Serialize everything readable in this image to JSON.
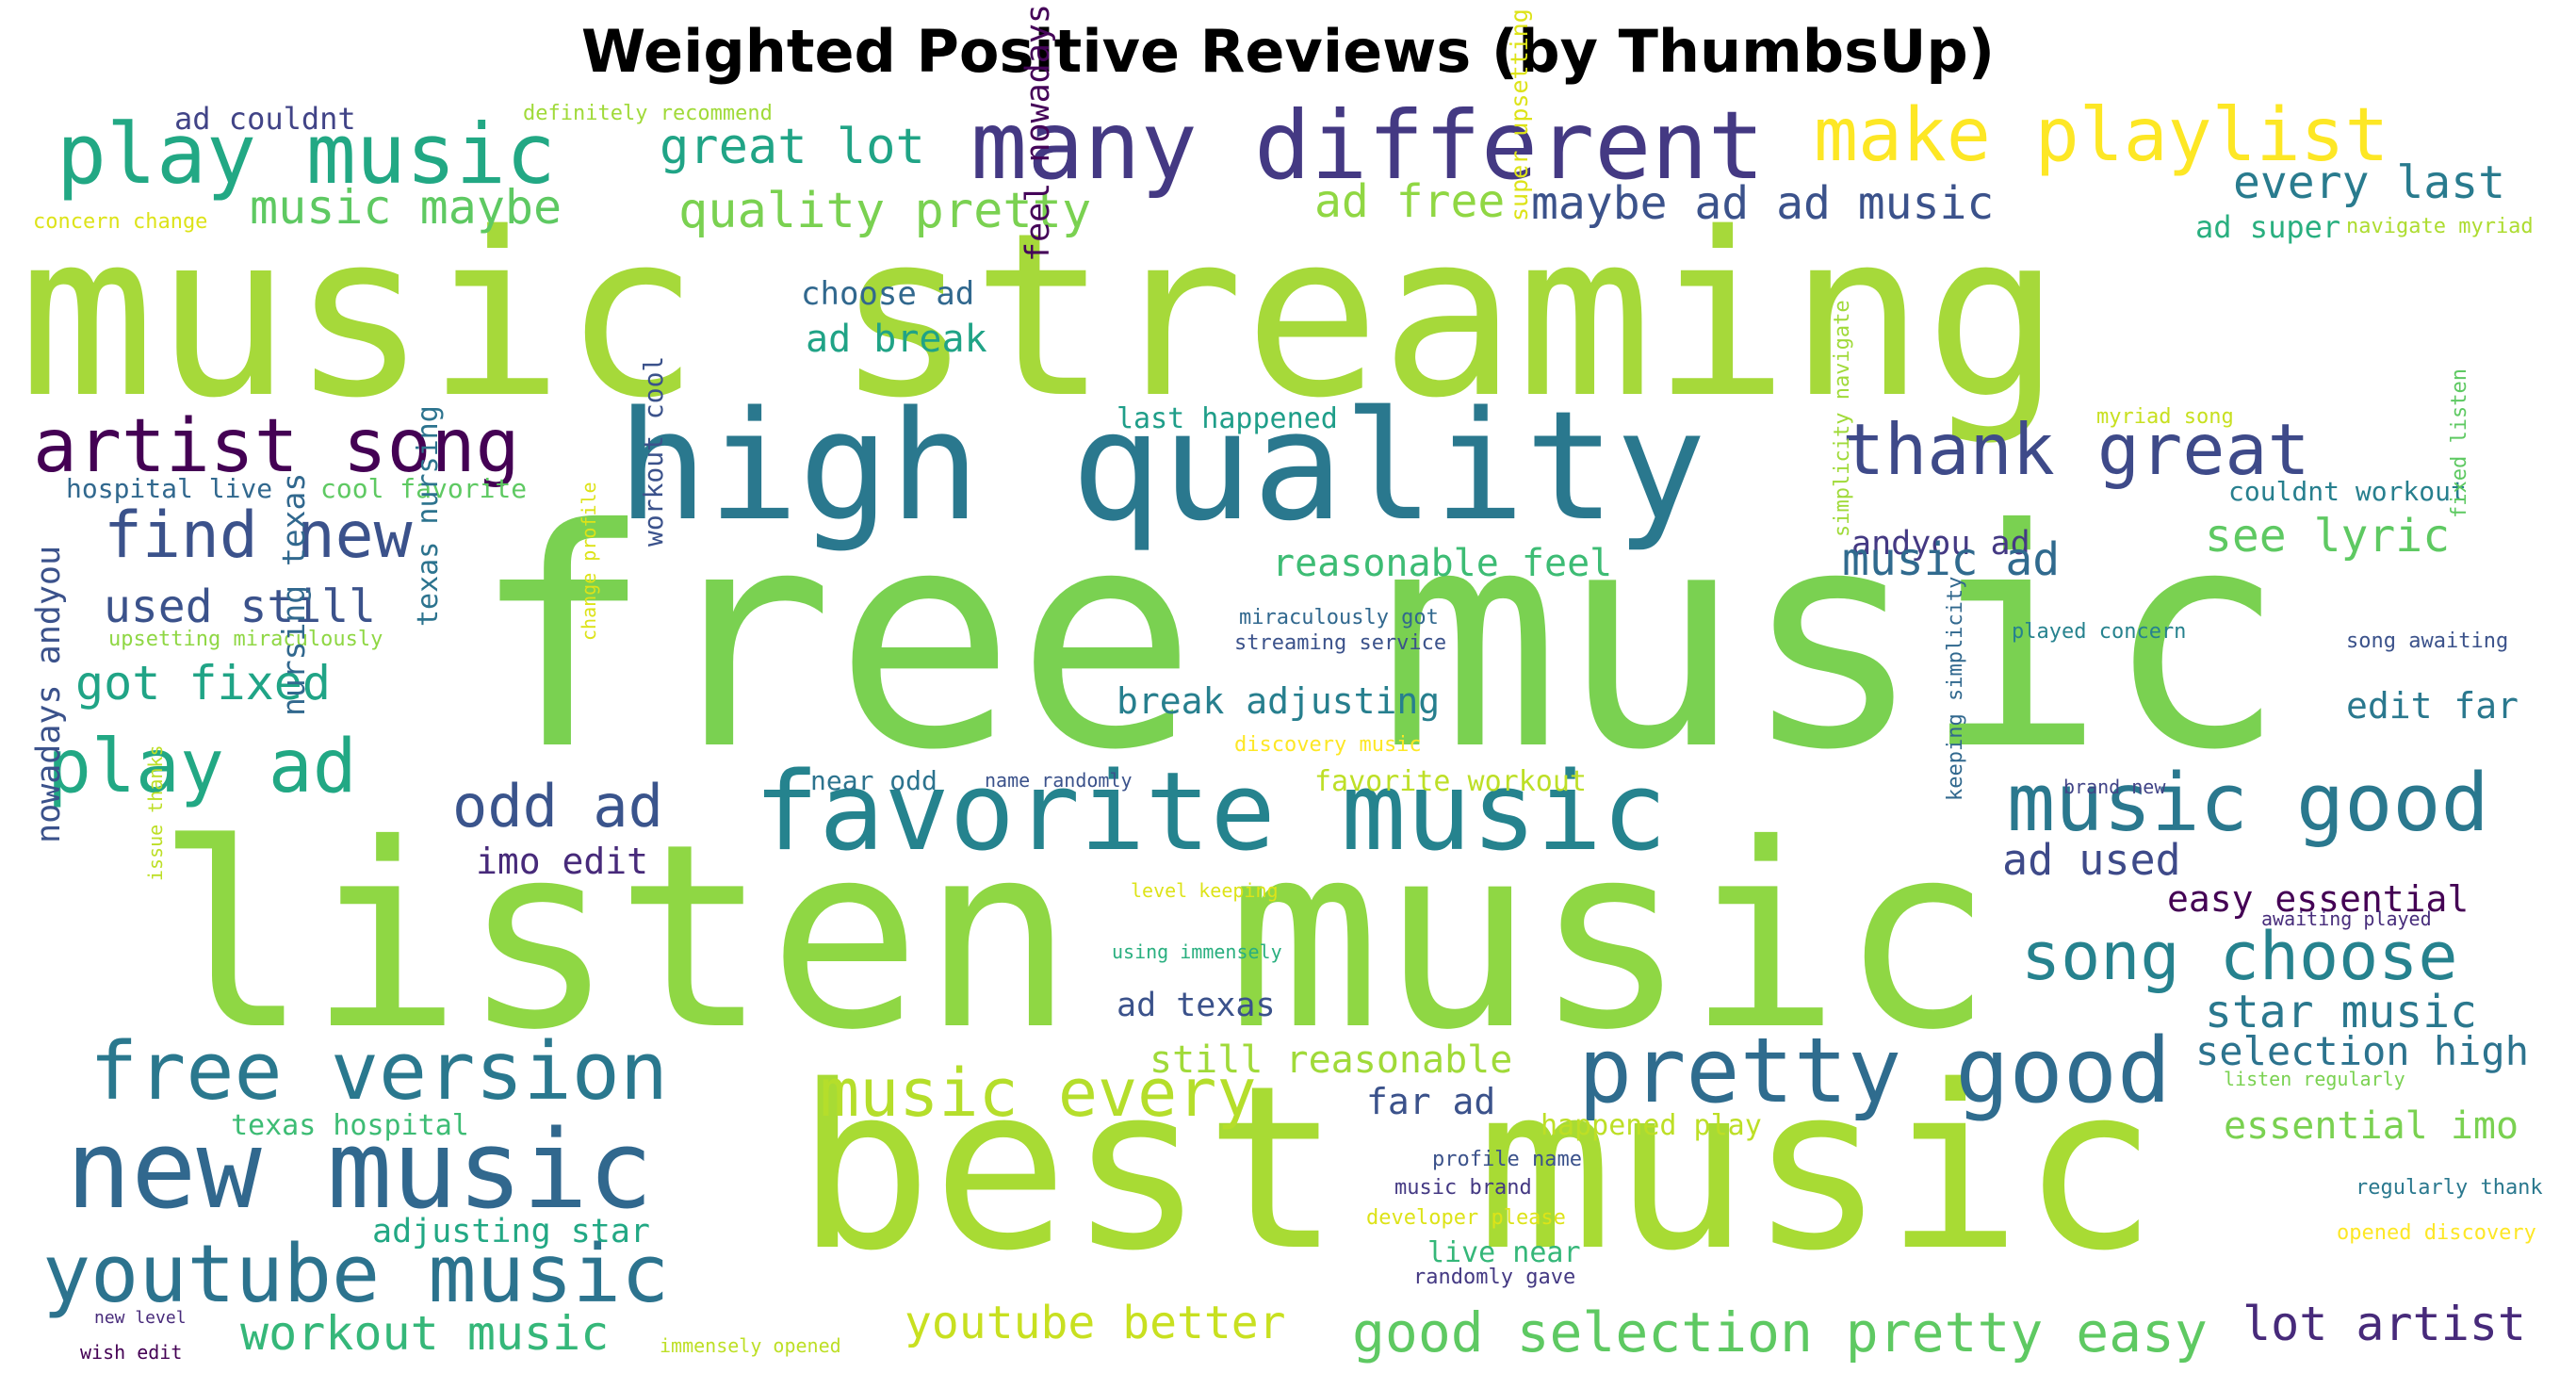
{
  "title": "Weighted Positive Reviews (by ThumbsUp)",
  "words": [
    {
      "text": "music streaming",
      "color": "#a6d93a"
    },
    {
      "text": "free music",
      "color": "#7ad151"
    },
    {
      "text": "listen music",
      "color": "#8fd744"
    },
    {
      "text": "best music",
      "color": "#a8db34"
    },
    {
      "text": "high quality",
      "color": "#2a788e"
    },
    {
      "text": "favorite music",
      "color": "#25838e"
    },
    {
      "text": "many different",
      "color": "#443983"
    },
    {
      "text": "play music",
      "color": "#22a884"
    },
    {
      "text": "make playlist",
      "color": "#fde725"
    },
    {
      "text": "new music",
      "color": "#31688e"
    },
    {
      "text": "youtube music",
      "color": "#2c738e"
    },
    {
      "text": "free version",
      "color": "#2a788e"
    },
    {
      "text": "pretty good",
      "color": "#2f6c8e"
    },
    {
      "text": "music good",
      "color": "#2a788e"
    },
    {
      "text": "artist song",
      "color": "#440154"
    },
    {
      "text": "thank great",
      "color": "#3e4a89"
    },
    {
      "text": "song choose",
      "color": "#26828e"
    },
    {
      "text": "music every",
      "color": "#b5de2b"
    },
    {
      "text": "find new",
      "color": "#3b528b"
    },
    {
      "text": "play ad",
      "color": "#22a884"
    },
    {
      "text": "odd ad",
      "color": "#3a548c"
    },
    {
      "text": "great lot",
      "color": "#20a486"
    },
    {
      "text": "music maybe",
      "color": "#5ec962"
    },
    {
      "text": "quality pretty",
      "color": "#7ad151"
    },
    {
      "text": "ad free",
      "color": "#90d743"
    },
    {
      "text": "maybe ad ad music",
      "color": "#3b528b"
    },
    {
      "text": "every last",
      "color": "#297b8e"
    },
    {
      "text": "ad super",
      "color": "#29af7f"
    },
    {
      "text": "navigate myriad",
      "color": "#addc30"
    },
    {
      "text": "ad couldnt",
      "color": "#414487"
    },
    {
      "text": "definitely recommend",
      "color": "#a0da39"
    },
    {
      "text": "concern change",
      "color": "#dde318"
    },
    {
      "text": "choose ad",
      "color": "#31688e"
    },
    {
      "text": "ad break",
      "color": "#20a386"
    },
    {
      "text": "feel nowadays",
      "color": "#450559"
    },
    {
      "text": "super upsetting",
      "color": "#dde318"
    },
    {
      "text": "last happened",
      "color": "#1f9e89"
    },
    {
      "text": "myriad song",
      "color": "#c8e020"
    },
    {
      "text": "hospital live",
      "color": "#31688e"
    },
    {
      "text": "cool favorite",
      "color": "#5ec962"
    },
    {
      "text": "andyou ad",
      "color": "#443983"
    },
    {
      "text": "couldnt workout",
      "color": "#277f8e"
    },
    {
      "text": "see lyric",
      "color": "#5ec962"
    },
    {
      "text": "music ad",
      "color": "#306a8e"
    },
    {
      "text": "reasonable feel",
      "color": "#3dbc74"
    },
    {
      "text": "used still",
      "color": "#3b528b"
    },
    {
      "text": "workout cool",
      "color": "#3b528b"
    },
    {
      "text": "miraculously got",
      "color": "#31688e"
    },
    {
      "text": "streaming service",
      "color": "#3b528b"
    },
    {
      "text": "upsetting miraculously",
      "color": "#8fd744"
    },
    {
      "text": "got fixed",
      "color": "#20a486"
    },
    {
      "text": "nursing texas",
      "color": "#31688e"
    },
    {
      "text": "texas nursing",
      "color": "#2c738e"
    },
    {
      "text": "break adjusting",
      "color": "#277f8e"
    },
    {
      "text": "change profile",
      "color": "#dde318"
    },
    {
      "text": "simplicity navigate",
      "color": "#a0da39"
    },
    {
      "text": "played concern",
      "color": "#26828e"
    },
    {
      "text": "song awaiting",
      "color": "#3b528b"
    },
    {
      "text": "fixed listen",
      "color": "#5ec962"
    },
    {
      "text": "edit far",
      "color": "#2a788e"
    },
    {
      "text": "discovery music",
      "color": "#fde725"
    },
    {
      "text": "favorite workout",
      "color": "#bddf26"
    },
    {
      "text": "near odd",
      "color": "#2c738e"
    },
    {
      "text": "name randomly",
      "color": "#3b528b"
    },
    {
      "text": "brand new",
      "color": "#414487"
    },
    {
      "text": "imo edit",
      "color": "#472a7a"
    },
    {
      "text": "ad used",
      "color": "#3e4a89"
    },
    {
      "text": "easy essential",
      "color": "#440154"
    },
    {
      "text": "issue thanks",
      "color": "#bddf26"
    },
    {
      "text": "nowadays andyou",
      "color": "#3b528b"
    },
    {
      "text": "level keeping",
      "color": "#dde318"
    },
    {
      "text": "using immensely",
      "color": "#29af7f"
    },
    {
      "text": "awaiting played",
      "color": "#472d7b"
    },
    {
      "text": "keeping simplicity",
      "color": "#31688e"
    },
    {
      "text": "ad texas",
      "color": "#3b528b"
    },
    {
      "text": "star music",
      "color": "#2a788e"
    },
    {
      "text": "still reasonable",
      "color": "#a0da39"
    },
    {
      "text": "selection high",
      "color": "#2c738e"
    },
    {
      "text": "far ad",
      "color": "#3b528b"
    },
    {
      "text": "listen regularly",
      "color": "#7ad151"
    },
    {
      "text": "texas hospital",
      "color": "#3dbc74"
    },
    {
      "text": "happened play",
      "color": "#bddf26"
    },
    {
      "text": "essential imo",
      "color": "#7ad151"
    },
    {
      "text": "profile name",
      "color": "#3b528b"
    },
    {
      "text": "music brand",
      "color": "#443983"
    },
    {
      "text": "regularly thank",
      "color": "#2a788e"
    },
    {
      "text": "developer please",
      "color": "#dde318"
    },
    {
      "text": "opened discovery",
      "color": "#fde725"
    },
    {
      "text": "adjusting star",
      "color": "#22a884"
    },
    {
      "text": "live near",
      "color": "#35b779"
    },
    {
      "text": "randomly gave",
      "color": "#443983"
    },
    {
      "text": "workout music",
      "color": "#35b779"
    },
    {
      "text": "youtube better",
      "color": "#c8e020"
    },
    {
      "text": "good selection pretty easy",
      "color": "#5ec962"
    },
    {
      "text": "lot artist",
      "color": "#472a7a"
    },
    {
      "text": "new level",
      "color": "#472a7a"
    },
    {
      "text": "wish edit",
      "color": "#440154"
    },
    {
      "text": "immensely opened",
      "color": "#bddf26"
    }
  ]
}
